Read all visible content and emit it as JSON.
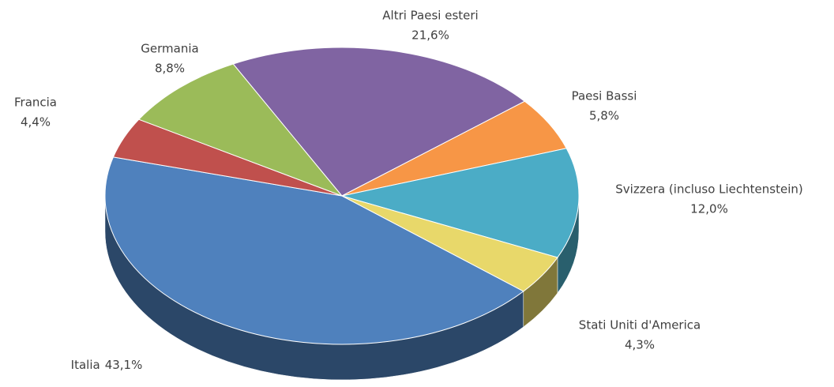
{
  "chart_data": {
    "type": "pie",
    "categories": [
      "Italia",
      "Francia",
      "Germania",
      "Altri Paesi esteri",
      "Paesi Bassi",
      "Svizzera (incluso Liechtenstein)",
      "Stati Uniti d'America"
    ],
    "values": [
      43.1,
      4.4,
      8.8,
      21.6,
      5.8,
      12.0,
      4.3
    ],
    "value_labels": [
      "43,1%",
      "4,4%",
      "8,8%",
      "21,6%",
      "5,8%",
      "12,0%",
      "4,3%"
    ],
    "colors": [
      "#4f81bd",
      "#c0504d",
      "#9bbb59",
      "#8064a2",
      "#f79646",
      "#4bacc6",
      "#e8d86a"
    ]
  }
}
